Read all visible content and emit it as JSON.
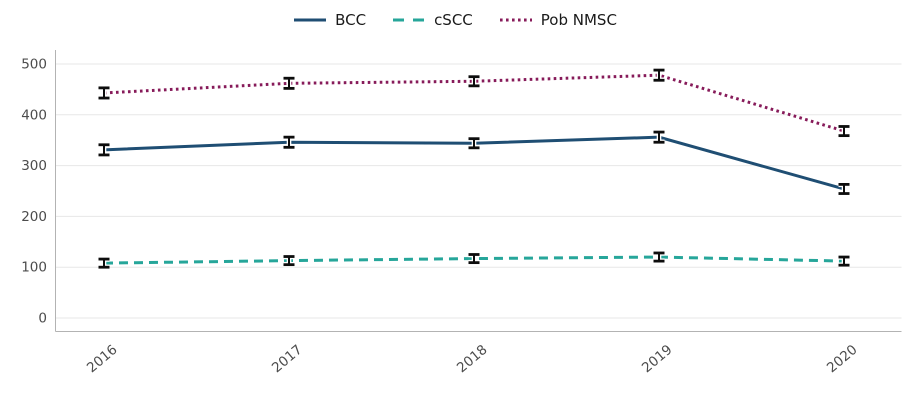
{
  "chart_data": {
    "type": "line",
    "title": "",
    "xlabel": "",
    "ylabel": "",
    "categories": [
      "2016",
      "2017",
      "2018",
      "2019",
      "2020"
    ],
    "series": [
      {
        "name": "BCC",
        "color": "#1f4e73",
        "line_style": "solid",
        "values": [
          331,
          346,
          344,
          356,
          254
        ],
        "errors": [
          10,
          10,
          9,
          10,
          9
        ]
      },
      {
        "name": "cSCC",
        "color": "#26a69a",
        "line_style": "dashed",
        "values": [
          108,
          113,
          117,
          120,
          112
        ],
        "errors": [
          8,
          8,
          8,
          8,
          8
        ]
      },
      {
        "name": "Pob NMSC",
        "color": "#871b5a",
        "line_style": "dotted",
        "values": [
          443,
          462,
          466,
          478,
          368
        ],
        "errors": [
          10,
          10,
          9,
          10,
          9
        ]
      }
    ],
    "yticks": [
      0,
      100,
      200,
      300,
      400,
      500
    ],
    "ylim": [
      0,
      500
    ],
    "grid": true,
    "legend_position": "top-center",
    "error_bar_color": "#0d0d0d",
    "x_label_rotation_deg": 40
  }
}
